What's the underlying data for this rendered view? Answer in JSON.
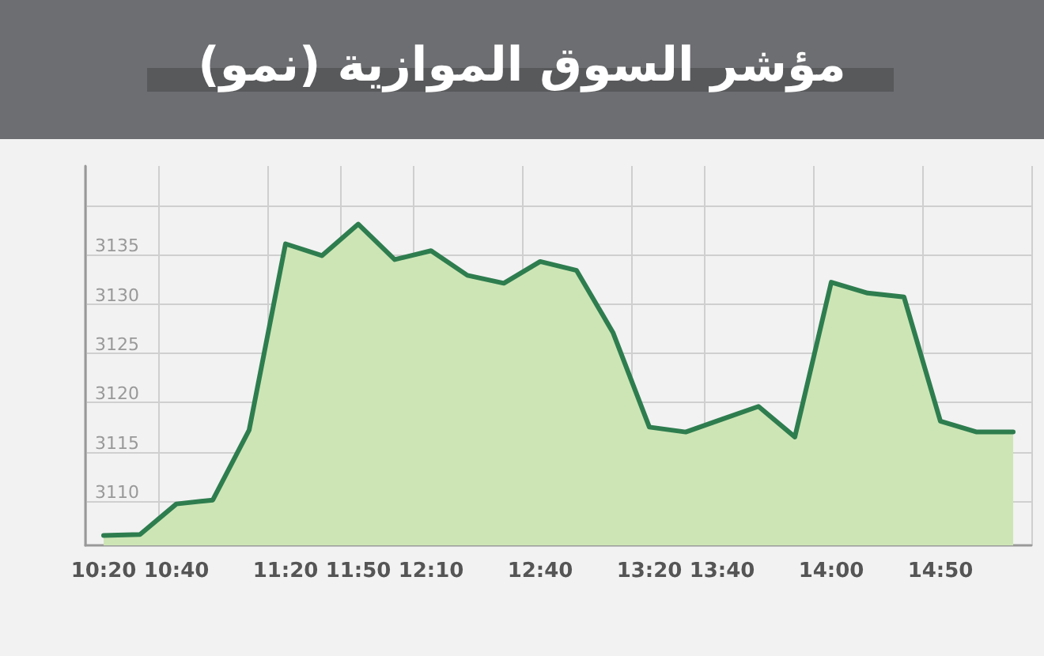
{
  "chart_data": {
    "type": "area",
    "title": "مؤشر السوق الموازية (نمو)",
    "categories": [
      "10:20",
      null,
      "10:40",
      null,
      null,
      "11:20",
      null,
      "11:50",
      null,
      "12:10",
      null,
      null,
      "12:40",
      null,
      null,
      "13:20",
      null,
      "13:40",
      null,
      null,
      "14:00",
      null,
      null,
      "14:50",
      null,
      null
    ],
    "series": [
      {
        "color": "#2e7d4f",
        "values": [
          3106.5,
          3106.6,
          3109.7,
          3110.1,
          3117.2,
          3136.1,
          3134.9,
          3138.1,
          3134.5,
          3135.4,
          3132.9,
          3132.1,
          3134.3,
          3133.4,
          3127.1,
          3117.5,
          3117.0,
          3118.3,
          3119.6,
          3116.5,
          3132.2,
          3131.1,
          3130.7,
          3118.1,
          3117.0,
          3117.0
        ]
      }
    ],
    "ylim": [
      3105.5,
      3144
    ],
    "yticks": [
      3110,
      3115,
      3120,
      3125,
      3130,
      3135,
      {
        "value": 3140,
        "label": null
      }
    ],
    "grid": true,
    "marker": "none",
    "line_style": "solid"
  }
}
